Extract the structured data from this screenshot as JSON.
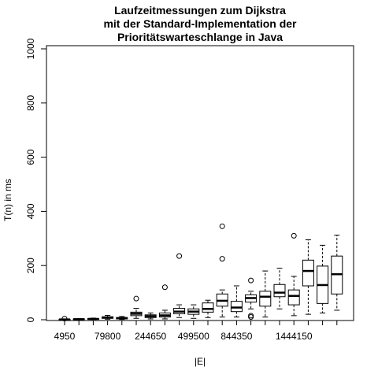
{
  "chart_data": {
    "type": "boxplot",
    "title_lines": [
      "Laufzeitmessungen zum Dijkstra",
      "mit der Standard-Implementation der",
      "Prioritätswarteschlange in Java"
    ],
    "xlabel": "|E|",
    "ylabel": "T(n) in ms",
    "ylim": [
      0,
      1000
    ],
    "yticks": [
      0,
      200,
      400,
      600,
      800,
      1000
    ],
    "x_tick_labels": [
      {
        "index": 1,
        "label": "4950"
      },
      {
        "index": 4,
        "label": "79800"
      },
      {
        "index": 7,
        "label": "244650"
      },
      {
        "index": 10,
        "label": "499500"
      },
      {
        "index": 13,
        "label": "844350"
      },
      {
        "index": 17,
        "label": "1444150"
      }
    ],
    "boxes": [
      {
        "index": 1,
        "whisker_low": 0,
        "q1": 0,
        "median": 1,
        "q3": 2,
        "whisker_high": 3,
        "outliers": [
          4
        ]
      },
      {
        "index": 2,
        "whisker_low": 0,
        "q1": 1,
        "median": 2,
        "q3": 3,
        "whisker_high": 4,
        "outliers": []
      },
      {
        "index": 3,
        "whisker_low": 1,
        "q1": 2,
        "median": 3,
        "q3": 4,
        "whisker_high": 6,
        "outliers": []
      },
      {
        "index": 4,
        "whisker_low": 2,
        "q1": 5,
        "median": 8,
        "q3": 11,
        "whisker_high": 16,
        "outliers": []
      },
      {
        "index": 5,
        "whisker_low": 1,
        "q1": 3,
        "median": 6,
        "q3": 8,
        "whisker_high": 12,
        "outliers": []
      },
      {
        "index": 6,
        "whisker_low": 5,
        "q1": 15,
        "median": 22,
        "q3": 28,
        "whisker_high": 42,
        "outliers": [
          78
        ]
      },
      {
        "index": 7,
        "whisker_low": 3,
        "q1": 8,
        "median": 13,
        "q3": 18,
        "whisker_high": 25,
        "outliers": []
      },
      {
        "index": 8,
        "whisker_low": 3,
        "q1": 10,
        "median": 16,
        "q3": 25,
        "whisker_high": 35,
        "outliers": [
          120
        ]
      },
      {
        "index": 9,
        "whisker_low": 8,
        "q1": 22,
        "median": 30,
        "q3": 42,
        "whisker_high": 55,
        "outliers": [
          235
        ]
      },
      {
        "index": 10,
        "whisker_low": 5,
        "q1": 20,
        "median": 30,
        "q3": 40,
        "whisker_high": 55,
        "outliers": []
      },
      {
        "index": 11,
        "whisker_low": 8,
        "q1": 28,
        "median": 40,
        "q3": 62,
        "whisker_high": 72,
        "outliers": []
      },
      {
        "index": 12,
        "whisker_low": 10,
        "q1": 50,
        "median": 70,
        "q3": 95,
        "whisker_high": 110,
        "outliers": [
          345,
          225
        ]
      },
      {
        "index": 13,
        "whisker_low": 10,
        "q1": 30,
        "median": 45,
        "q3": 68,
        "whisker_high": 125,
        "outliers": []
      },
      {
        "index": 14,
        "whisker_low": 40,
        "q1": 65,
        "median": 80,
        "q3": 92,
        "whisker_high": 105,
        "outliers": [
          145,
          15,
          10
        ]
      },
      {
        "index": 15,
        "whisker_low": 10,
        "q1": 50,
        "median": 85,
        "q3": 105,
        "whisker_high": 180,
        "outliers": []
      },
      {
        "index": 16,
        "whisker_low": 40,
        "q1": 85,
        "median": 100,
        "q3": 130,
        "whisker_high": 190,
        "outliers": []
      },
      {
        "index": 17,
        "whisker_low": 15,
        "q1": 55,
        "median": 88,
        "q3": 110,
        "whisker_high": 160,
        "outliers": [
          310
        ]
      },
      {
        "index": 18,
        "whisker_low": 20,
        "q1": 125,
        "median": 180,
        "q3": 220,
        "whisker_high": 295,
        "outliers": []
      },
      {
        "index": 19,
        "whisker_low": 25,
        "q1": 60,
        "median": 128,
        "q3": 198,
        "whisker_high": 275,
        "outliers": []
      },
      {
        "index": 20,
        "whisker_low": 35,
        "q1": 95,
        "median": 168,
        "q3": 235,
        "whisker_high": 312,
        "outliers": []
      }
    ]
  }
}
